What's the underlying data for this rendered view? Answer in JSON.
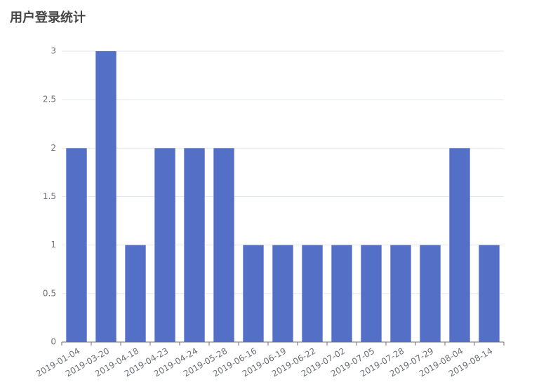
{
  "chart_data": {
    "type": "bar",
    "title": "用户登录统计",
    "categories": [
      "2019-01-04",
      "2019-03-20",
      "2019-04-18",
      "2019-04-23",
      "2019-04-24",
      "2019-05-28",
      "2019-06-16",
      "2019-06-19",
      "2019-06-22",
      "2019-07-02",
      "2019-07-05",
      "2019-07-28",
      "2019-07-29",
      "2019-08-04",
      "2019-08-14"
    ],
    "values": [
      2,
      3,
      1,
      2,
      2,
      2,
      1,
      1,
      1,
      1,
      1,
      1,
      1,
      2,
      1
    ],
    "color": "#5470c6",
    "ylim": [
      0,
      3
    ],
    "yticks": [
      0,
      0.5,
      1,
      1.5,
      2,
      2.5,
      3
    ],
    "grid": true
  }
}
